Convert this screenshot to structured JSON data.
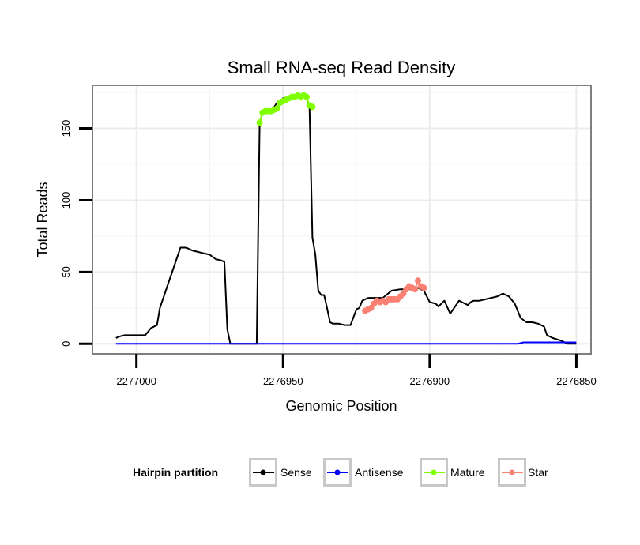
{
  "chart_data": {
    "type": "line",
    "title": "Small RNA-seq Read Density",
    "xlabel": "Genomic Position",
    "ylabel": "Total Reads",
    "xlim": [
      2277015,
      2276845
    ],
    "ylim": [
      -7,
      180
    ],
    "x_reversed": true,
    "xticks": [
      2277000,
      2276950,
      2276900,
      2276850
    ],
    "xtick_labels": [
      "2277000",
      "2276950",
      "2276900",
      "2276850"
    ],
    "yticks": [
      0,
      50,
      100,
      150
    ],
    "ytick_labels": [
      "0",
      "50",
      "100",
      "150"
    ],
    "x_minor_gridlines": [
      2276975,
      2276925,
      2276875
    ],
    "y_minor_gridlines": [
      25,
      75,
      125,
      175
    ],
    "legend": {
      "title": "Hairpin partition",
      "position": "bottom",
      "items": [
        "Sense",
        "Antisense",
        "Mature",
        "Star"
      ]
    },
    "series": [
      {
        "name": "Sense",
        "color": "#000000",
        "marker": false,
        "x": [
          2277007,
          2277006,
          2277004,
          2276998,
          2276997,
          2276995,
          2276993,
          2276992,
          2276990,
          2276985,
          2276983,
          2276981,
          2276979,
          2276977,
          2276975,
          2276973,
          2276971,
          2276970,
          2276969,
          2276968,
          2276967,
          2276966,
          2276959,
          2276958,
          2276957,
          2276956,
          2276954,
          2276952,
          2276950,
          2276948,
          2276946,
          2276944,
          2276942,
          2276941,
          2276940,
          2276939,
          2276938,
          2276937,
          2276936,
          2276935,
          2276934,
          2276933,
          2276931,
          2276929,
          2276927,
          2276925,
          2276924,
          2276923,
          2276922,
          2276921,
          2276919,
          2276916,
          2276913,
          2276910,
          2276907,
          2276904,
          2276903,
          2276902,
          2276900,
          2276898,
          2276897,
          2276895,
          2276893,
          2276890,
          2276888,
          2276887,
          2276886,
          2276885,
          2276883,
          2276881,
          2276879,
          2276877,
          2276875,
          2276873,
          2276871,
          2276869,
          2276867,
          2276865,
          2276863,
          2276861,
          2276860,
          2276858,
          2276855,
          2276853,
          2276852,
          2276851,
          2276850
        ],
        "y": [
          4,
          5,
          6,
          6,
          6,
          11,
          13,
          25,
          37,
          67,
          67,
          65,
          64,
          63,
          62,
          59,
          58,
          57,
          10,
          0,
          0,
          0,
          0,
          154,
          161,
          161,
          162,
          168,
          171,
          172,
          172,
          172,
          172,
          165,
          74,
          62,
          37,
          34,
          34,
          25,
          15,
          14,
          14,
          13,
          13,
          24,
          25,
          30,
          31,
          32,
          32,
          32,
          37,
          38,
          38,
          39,
          38,
          37,
          29,
          28,
          26,
          30,
          21,
          30,
          28,
          27,
          29,
          30,
          30,
          31,
          32,
          33,
          35,
          33,
          28,
          18,
          15,
          15,
          14,
          12,
          6,
          4,
          2,
          0,
          0,
          0,
          0
        ]
      },
      {
        "name": "Antisense",
        "color": "#0000ff",
        "marker": false,
        "x": [
          2277007,
          2276870,
          2276868,
          2276850
        ],
        "y": [
          0,
          0,
          1,
          1
        ]
      },
      {
        "name": "Mature",
        "color": "#7fff00",
        "marker": true,
        "x": [
          2276958,
          2276957,
          2276956,
          2276955,
          2276954,
          2276953,
          2276952,
          2276951,
          2276950,
          2276949,
          2276948,
          2276947,
          2276946,
          2276945,
          2276944,
          2276943,
          2276942,
          2276941,
          2276940
        ],
        "y": [
          154,
          161,
          162,
          162,
          162,
          163,
          164,
          168,
          169,
          170,
          171,
          172,
          172,
          173,
          172,
          173,
          172,
          166,
          165
        ]
      },
      {
        "name": "Star",
        "color": "#fa8072",
        "marker": true,
        "x": [
          2276922,
          2276921,
          2276920,
          2276919,
          2276918,
          2276917,
          2276916,
          2276915,
          2276914,
          2276913,
          2276912,
          2276911,
          2276910,
          2276909,
          2276908,
          2276907,
          2276906,
          2276905,
          2276904,
          2276903,
          2276902
        ],
        "y": [
          23,
          24,
          25,
          28,
          30,
          29,
          30,
          29,
          31,
          31,
          31,
          31,
          33,
          35,
          38,
          40,
          39,
          38,
          44,
          40,
          39
        ]
      }
    ]
  }
}
